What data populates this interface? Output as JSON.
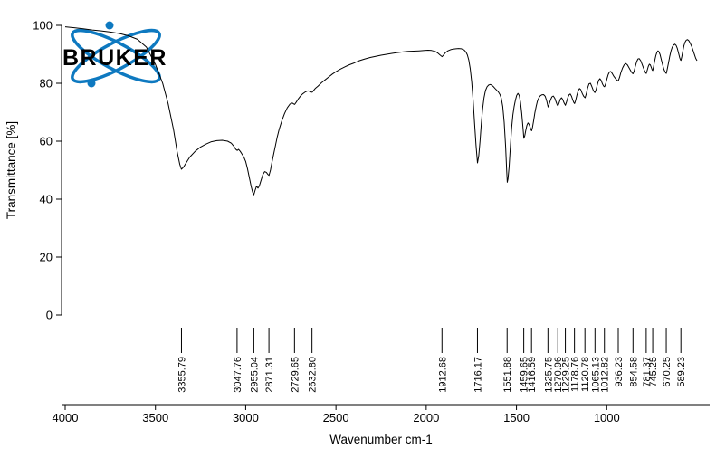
{
  "logo": {
    "brand": "BRUKER",
    "color": "#0e79c0"
  },
  "chart_data": {
    "type": "line",
    "title": "",
    "xlabel": "Wavenumber cm-1",
    "ylabel": "Transmittance [%]",
    "xlim": [
      4000,
      500
    ],
    "x_reversed": true,
    "ylim": [
      0,
      100
    ],
    "x_ticks": [
      4000,
      3500,
      3000,
      2500,
      2000,
      1500,
      1000
    ],
    "y_ticks": [
      0,
      20,
      40,
      60,
      80,
      100
    ],
    "grid": false,
    "legend": "none",
    "line_color": "#000000",
    "peak_labels": [
      3355.79,
      3047.76,
      2955.04,
      2871.31,
      2729.65,
      2632.8,
      1912.68,
      1716.17,
      1551.88,
      1459.65,
      1416.59,
      1325.75,
      1270.96,
      1229.25,
      1178.76,
      1120.78,
      1065.13,
      1012.82,
      936.23,
      854.58,
      781.37,
      745.25,
      670.25,
      589.23
    ],
    "series": [
      {
        "name": "FTIR transmittance spectrum",
        "points": [
          [
            4000,
            99.5
          ],
          [
            3950,
            99.2
          ],
          [
            3900,
            98.8
          ],
          [
            3850,
            98.4
          ],
          [
            3800,
            98.1
          ],
          [
            3750,
            97.7
          ],
          [
            3700,
            97.2
          ],
          [
            3650,
            96.4
          ],
          [
            3600,
            95.2
          ],
          [
            3550,
            92.5
          ],
          [
            3500,
            86.5
          ],
          [
            3460,
            80
          ],
          [
            3430,
            73
          ],
          [
            3400,
            64
          ],
          [
            3380,
            56.5
          ],
          [
            3365,
            52
          ],
          [
            3356,
            50.3
          ],
          [
            3345,
            51
          ],
          [
            3330,
            52.5
          ],
          [
            3310,
            54.5
          ],
          [
            3280,
            56.5
          ],
          [
            3250,
            58
          ],
          [
            3220,
            59
          ],
          [
            3190,
            59.8
          ],
          [
            3160,
            60.2
          ],
          [
            3130,
            60.3
          ],
          [
            3100,
            60
          ],
          [
            3080,
            59.3
          ],
          [
            3065,
            58.2
          ],
          [
            3055,
            57.2
          ],
          [
            3047,
            56.8
          ],
          [
            3040,
            57.2
          ],
          [
            3030,
            56.5
          ],
          [
            3020,
            55.5
          ],
          [
            3010,
            54.5
          ],
          [
            3000,
            53
          ],
          [
            2990,
            50.5
          ],
          [
            2980,
            47.5
          ],
          [
            2970,
            44.5
          ],
          [
            2962,
            42.5
          ],
          [
            2955,
            41.5
          ],
          [
            2948,
            43
          ],
          [
            2940,
            44.5
          ],
          [
            2932,
            43.8
          ],
          [
            2925,
            44.5
          ],
          [
            2915,
            46.5
          ],
          [
            2905,
            48.5
          ],
          [
            2895,
            49.5
          ],
          [
            2885,
            49.2
          ],
          [
            2877,
            48.5
          ],
          [
            2871,
            48.2
          ],
          [
            2863,
            50
          ],
          [
            2855,
            52.5
          ],
          [
            2845,
            55.5
          ],
          [
            2835,
            58.5
          ],
          [
            2825,
            61.5
          ],
          [
            2815,
            64
          ],
          [
            2800,
            67
          ],
          [
            2785,
            69.5
          ],
          [
            2770,
            71.5
          ],
          [
            2755,
            72.8
          ],
          [
            2742,
            73.2
          ],
          [
            2735,
            72.9
          ],
          [
            2729,
            72.7
          ],
          [
            2720,
            73.5
          ],
          [
            2710,
            74.5
          ],
          [
            2698,
            75.5
          ],
          [
            2685,
            76.3
          ],
          [
            2670,
            77
          ],
          [
            2655,
            77.4
          ],
          [
            2645,
            77.2
          ],
          [
            2638,
            77
          ],
          [
            2632,
            76.9
          ],
          [
            2624,
            77.5
          ],
          [
            2615,
            78.2
          ],
          [
            2600,
            79
          ],
          [
            2580,
            80.2
          ],
          [
            2560,
            81.2
          ],
          [
            2540,
            82.2
          ],
          [
            2520,
            83.2
          ],
          [
            2500,
            84
          ],
          [
            2475,
            84.9
          ],
          [
            2450,
            85.7
          ],
          [
            2425,
            86.4
          ],
          [
            2400,
            87
          ],
          [
            2370,
            87.8
          ],
          [
            2340,
            88.4
          ],
          [
            2310,
            88.9
          ],
          [
            2280,
            89.3
          ],
          [
            2250,
            89.7
          ],
          [
            2220,
            90
          ],
          [
            2190,
            90.3
          ],
          [
            2160,
            90.6
          ],
          [
            2130,
            90.8
          ],
          [
            2100,
            91
          ],
          [
            2070,
            91.1
          ],
          [
            2040,
            91.2
          ],
          [
            2010,
            91.3
          ],
          [
            1990,
            91.4
          ],
          [
            1970,
            91.3
          ],
          [
            1950,
            91
          ],
          [
            1935,
            90.4
          ],
          [
            1922,
            89.7
          ],
          [
            1912,
            89.2
          ],
          [
            1903,
            89.8
          ],
          [
            1893,
            90.6
          ],
          [
            1880,
            91.2
          ],
          [
            1865,
            91.6
          ],
          [
            1850,
            91.8
          ],
          [
            1835,
            91.9
          ],
          [
            1820,
            92
          ],
          [
            1805,
            91.9
          ],
          [
            1790,
            91.5
          ],
          [
            1780,
            90.8
          ],
          [
            1772,
            89.8
          ],
          [
            1764,
            88
          ],
          [
            1756,
            85
          ],
          [
            1748,
            80.5
          ],
          [
            1740,
            74
          ],
          [
            1732,
            66
          ],
          [
            1724,
            58.5
          ],
          [
            1716,
            52.5
          ],
          [
            1709,
            55
          ],
          [
            1702,
            60
          ],
          [
            1695,
            66
          ],
          [
            1688,
            71
          ],
          [
            1680,
            75
          ],
          [
            1672,
            77.5
          ],
          [
            1663,
            78.8
          ],
          [
            1654,
            79.4
          ],
          [
            1645,
            79.6
          ],
          [
            1636,
            79.3
          ],
          [
            1627,
            78.8
          ],
          [
            1618,
            78.2
          ],
          [
            1609,
            77.6
          ],
          [
            1600,
            77
          ],
          [
            1592,
            76.2
          ],
          [
            1584,
            74.8
          ],
          [
            1576,
            72
          ],
          [
            1568,
            66.5
          ],
          [
            1560,
            58
          ],
          [
            1554,
            49.5
          ],
          [
            1551,
            45.8
          ],
          [
            1547,
            47
          ],
          [
            1541,
            51
          ],
          [
            1534,
            58
          ],
          [
            1527,
            64.5
          ],
          [
            1520,
            69
          ],
          [
            1513,
            72
          ],
          [
            1506,
            74.2
          ],
          [
            1499,
            75.8
          ],
          [
            1492,
            76.5
          ],
          [
            1485,
            75.8
          ],
          [
            1478,
            73.5
          ],
          [
            1471,
            69.5
          ],
          [
            1464,
            64.5
          ],
          [
            1459,
            61
          ],
          [
            1454,
            61.8
          ],
          [
            1448,
            63.8
          ],
          [
            1442,
            65.5
          ],
          [
            1436,
            66.3
          ],
          [
            1430,
            65.8
          ],
          [
            1424,
            64.8
          ],
          [
            1419,
            63.9
          ],
          [
            1416,
            63.6
          ],
          [
            1411,
            64.8
          ],
          [
            1405,
            67
          ],
          [
            1398,
            69.8
          ],
          [
            1391,
            72
          ],
          [
            1384,
            73.8
          ],
          [
            1376,
            75
          ],
          [
            1368,
            75.7
          ],
          [
            1360,
            76
          ],
          [
            1350,
            76.1
          ],
          [
            1341,
            75.5
          ],
          [
            1333,
            74
          ],
          [
            1325,
            71.8
          ],
          [
            1319,
            72.8
          ],
          [
            1312,
            74.2
          ],
          [
            1304,
            75.3
          ],
          [
            1296,
            75.6
          ],
          [
            1288,
            74.8
          ],
          [
            1280,
            73.5
          ],
          [
            1274,
            72.5
          ],
          [
            1270,
            72.2
          ],
          [
            1264,
            73.2
          ],
          [
            1257,
            74.5
          ],
          [
            1250,
            75
          ],
          [
            1243,
            74.3
          ],
          [
            1236,
            73.2
          ],
          [
            1229,
            72.4
          ],
          [
            1223,
            73.5
          ],
          [
            1216,
            75
          ],
          [
            1209,
            76
          ],
          [
            1202,
            76.3
          ],
          [
            1195,
            75.5
          ],
          [
            1188,
            74.2
          ],
          [
            1182,
            73.3
          ],
          [
            1178,
            73
          ],
          [
            1172,
            74.2
          ],
          [
            1165,
            76
          ],
          [
            1158,
            77.5
          ],
          [
            1151,
            78.2
          ],
          [
            1144,
            77.8
          ],
          [
            1136,
            76.5
          ],
          [
            1128,
            75.5
          ],
          [
            1120,
            75
          ],
          [
            1113,
            76.5
          ],
          [
            1106,
            78.3
          ],
          [
            1098,
            79.8
          ],
          [
            1090,
            80
          ],
          [
            1082,
            78.8
          ],
          [
            1074,
            77.5
          ],
          [
            1068,
            76.9
          ],
          [
            1065,
            76.8
          ],
          [
            1059,
            77.8
          ],
          [
            1052,
            79.5
          ],
          [
            1045,
            81
          ],
          [
            1038,
            81.6
          ],
          [
            1031,
            81
          ],
          [
            1024,
            79.8
          ],
          [
            1017,
            79
          ],
          [
            1012,
            78.8
          ],
          [
            1006,
            79.8
          ],
          [
            999,
            81.5
          ],
          [
            992,
            83
          ],
          [
            985,
            83.9
          ],
          [
            978,
            84.1
          ],
          [
            970,
            83.4
          ],
          [
            960,
            82.3
          ],
          [
            950,
            81.5
          ],
          [
            942,
            81
          ],
          [
            936,
            80.8
          ],
          [
            929,
            82
          ],
          [
            921,
            83.8
          ],
          [
            912,
            85.3
          ],
          [
            903,
            86.4
          ],
          [
            894,
            86.8
          ],
          [
            885,
            86.3
          ],
          [
            876,
            85.3
          ],
          [
            866,
            84.2
          ],
          [
            859,
            83.5
          ],
          [
            854,
            83.3
          ],
          [
            848,
            84.3
          ],
          [
            841,
            86
          ],
          [
            834,
            87.5
          ],
          [
            827,
            88.4
          ],
          [
            820,
            88.5
          ],
          [
            812,
            87.8
          ],
          [
            804,
            86.5
          ],
          [
            796,
            85.2
          ],
          [
            789,
            84.1
          ],
          [
            784,
            83.5
          ],
          [
            781,
            83.4
          ],
          [
            776,
            84.5
          ],
          [
            770,
            85.8
          ],
          [
            764,
            86.6
          ],
          [
            758,
            86.3
          ],
          [
            752,
            85.3
          ],
          [
            748,
            84.6
          ],
          [
            745,
            84.4
          ],
          [
            740,
            85.8
          ],
          [
            734,
            87.8
          ],
          [
            728,
            89.5
          ],
          [
            722,
            90.7
          ],
          [
            716,
            91.2
          ],
          [
            710,
            90.8
          ],
          [
            704,
            89.8
          ],
          [
            697,
            88
          ],
          [
            690,
            86.3
          ],
          [
            683,
            84.8
          ],
          [
            676,
            83.8
          ],
          [
            670,
            83.4
          ],
          [
            665,
            84.8
          ],
          [
            658,
            87
          ],
          [
            651,
            89.3
          ],
          [
            644,
            91.2
          ],
          [
            637,
            92.5
          ],
          [
            630,
            93.2
          ],
          [
            623,
            93.5
          ],
          [
            616,
            93.1
          ],
          [
            609,
            92
          ],
          [
            602,
            90.3
          ],
          [
            596,
            88.8
          ],
          [
            591,
            88
          ],
          [
            589,
            87.9
          ],
          [
            584,
            89.2
          ],
          [
            578,
            91.2
          ],
          [
            572,
            93
          ],
          [
            566,
            94.2
          ],
          [
            559,
            94.9
          ],
          [
            552,
            95.1
          ],
          [
            545,
            94.7
          ],
          [
            538,
            93.9
          ],
          [
            530,
            92.8
          ],
          [
            522,
            91.4
          ],
          [
            514,
            89.9
          ],
          [
            507,
            88.6
          ],
          [
            500,
            87.8
          ]
        ]
      }
    ]
  }
}
